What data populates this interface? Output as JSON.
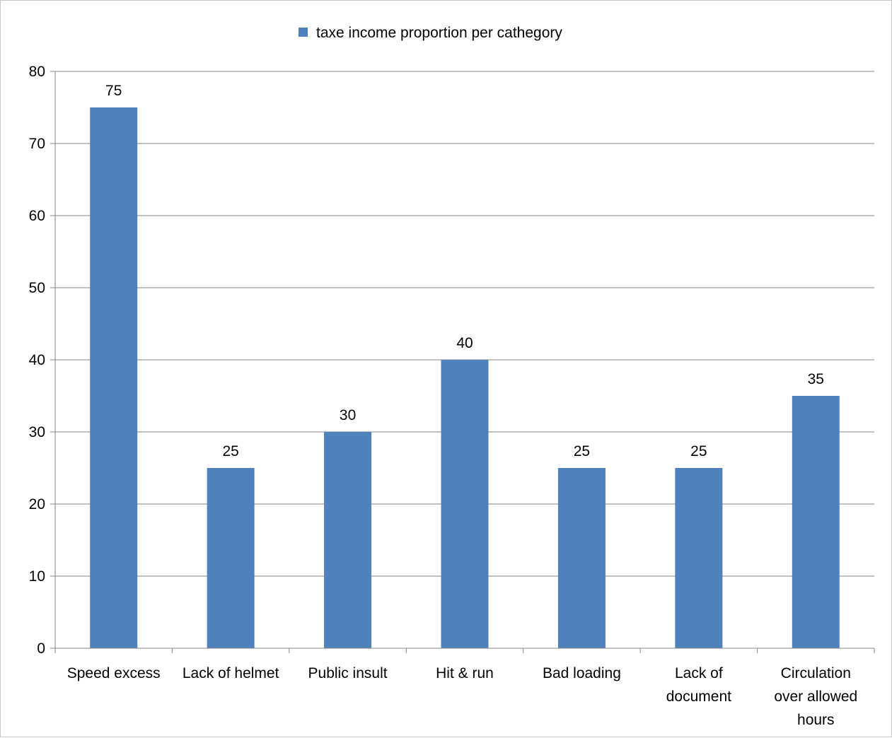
{
  "chart_data": {
    "type": "bar",
    "title": "",
    "xlabel": "",
    "ylabel": "",
    "categories": [
      [
        "Speed excess"
      ],
      [
        "Lack of helmet"
      ],
      [
        "Public insult"
      ],
      [
        "Hit & run"
      ],
      [
        "Bad loading"
      ],
      [
        "Lack of",
        "document"
      ],
      [
        "Circulation",
        "over allowed",
        "hours"
      ]
    ],
    "series": [
      {
        "name": "taxe income proportion per cathegory",
        "values": [
          75,
          25,
          30,
          40,
          25,
          25,
          35
        ],
        "color": "#4f81bd"
      }
    ],
    "ylim": [
      0,
      80
    ],
    "yticks": [
      0,
      10,
      20,
      30,
      40,
      50,
      60,
      70,
      80
    ],
    "grid": true,
    "legend": "top-center",
    "data_labels": true
  }
}
